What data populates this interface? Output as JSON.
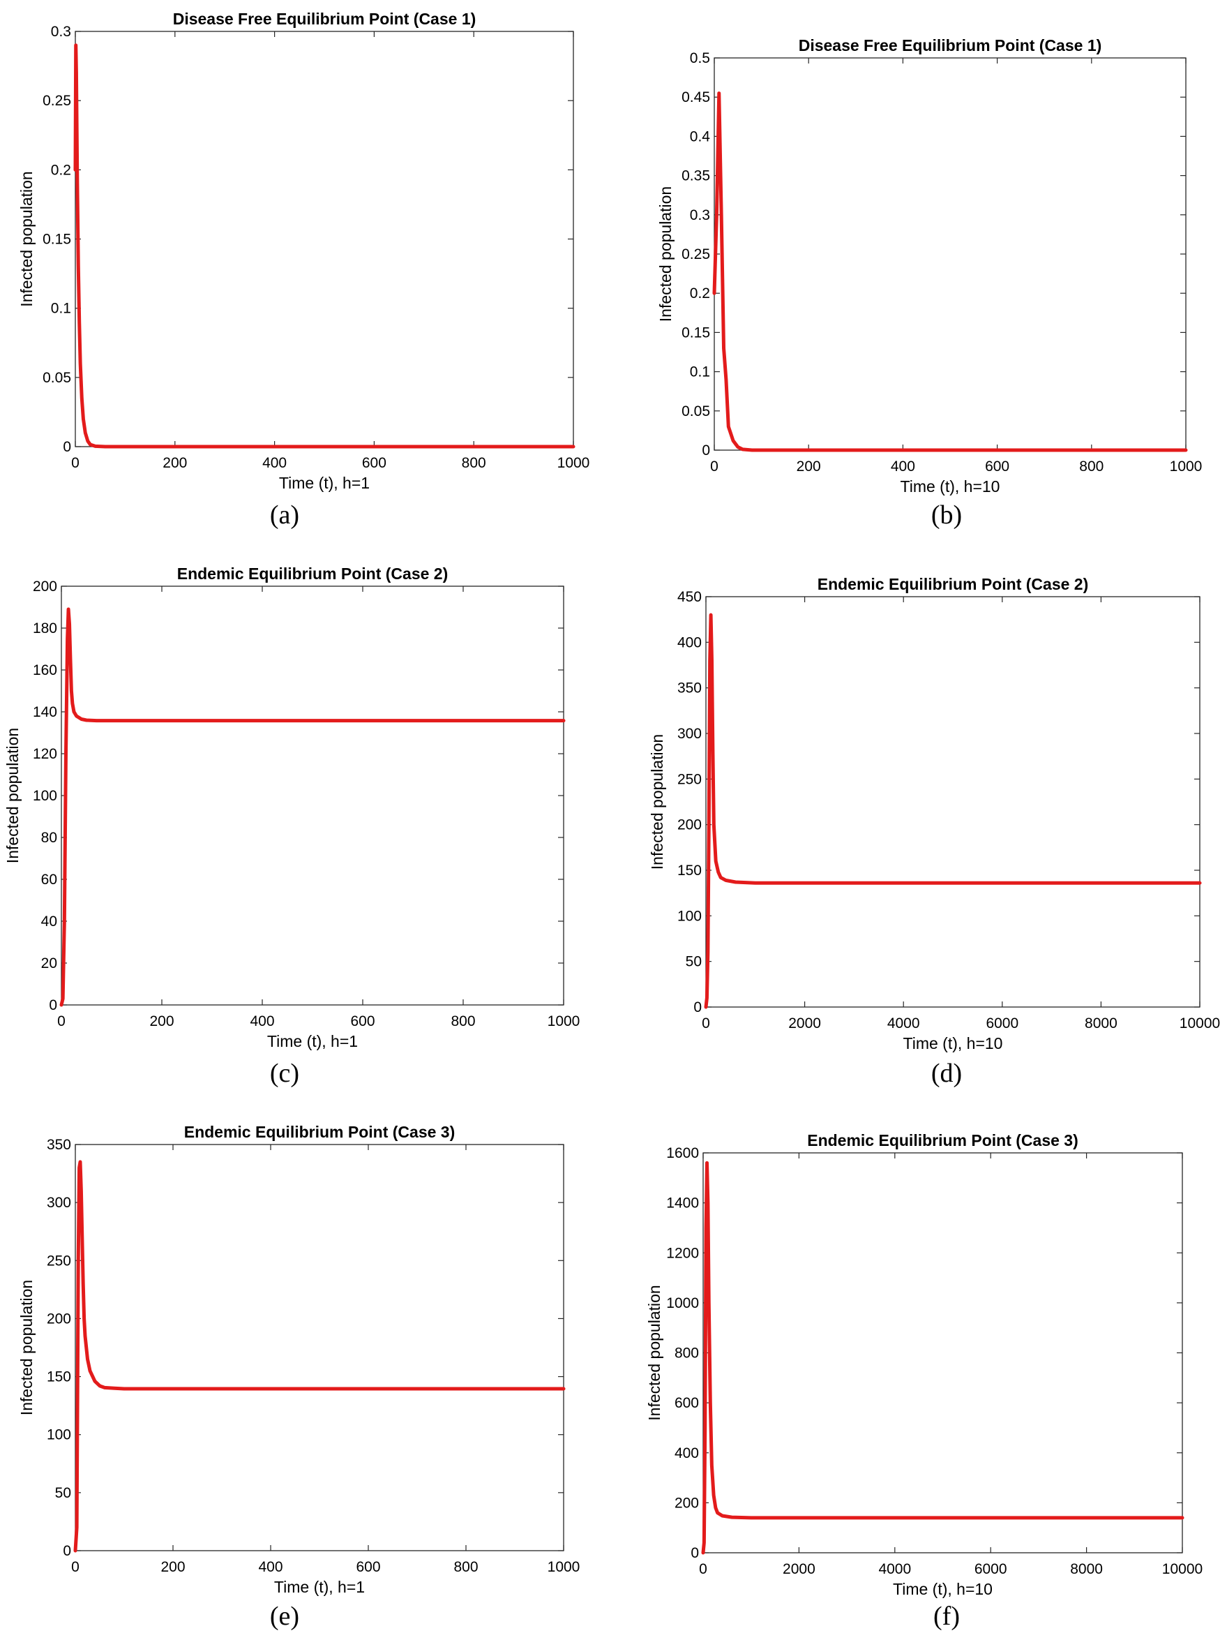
{
  "chart_data": [
    {
      "id": "a",
      "caption": "(a)",
      "type": "line",
      "title": "Disease Free Equilibrium Point (Case 1)",
      "xlabel": "Time (t), h=1",
      "ylabel": "Infected population",
      "xlim": [
        0,
        1000
      ],
      "ylim": [
        0,
        0.3
      ],
      "xticks": [
        0,
        200,
        400,
        600,
        800,
        1000
      ],
      "yticks": [
        0,
        0.05,
        0.1,
        0.15,
        0.2,
        0.25,
        0.3
      ],
      "grid": false,
      "line_color": "#e31b1b",
      "series": [
        {
          "x": [
            0,
            1,
            2,
            3,
            4,
            6,
            8,
            10,
            13,
            16,
            20,
            25,
            30,
            40,
            60,
            100,
            200,
            400,
            600,
            800,
            1000
          ],
          "y": [
            0.2,
            0.29,
            0.27,
            0.23,
            0.19,
            0.13,
            0.09,
            0.06,
            0.035,
            0.02,
            0.01,
            0.004,
            0.0015,
            0.0003,
            0,
            0,
            0,
            0,
            0,
            0,
            0
          ]
        }
      ]
    },
    {
      "id": "b",
      "caption": "(b)",
      "type": "line",
      "title": "Disease Free Equilibrium Point (Case 1)",
      "xlabel": "Time (t), h=10",
      "ylabel": "Infected population",
      "xlim": [
        0,
        1000
      ],
      "ylim": [
        0,
        0.5
      ],
      "xticks": [
        0,
        200,
        400,
        600,
        800,
        1000
      ],
      "yticks": [
        0,
        0.05,
        0.1,
        0.15,
        0.2,
        0.25,
        0.3,
        0.35,
        0.4,
        0.45,
        0.5
      ],
      "grid": false,
      "line_color": "#e31b1b",
      "series": [
        {
          "x": [
            0,
            5,
            10,
            15,
            20,
            25,
            30,
            40,
            50,
            60,
            80,
            100,
            200,
            400,
            600,
            800,
            1000
          ],
          "y": [
            0.2,
            0.3,
            0.455,
            0.3,
            0.13,
            0.09,
            0.03,
            0.012,
            0.004,
            0.001,
            0,
            0,
            0,
            0,
            0,
            0,
            0
          ]
        }
      ]
    },
    {
      "id": "c",
      "caption": "(c)",
      "type": "line",
      "title": "Endemic Equilibrium Point (Case 2)",
      "xlabel": "Time (t), h=1",
      "ylabel": "Infected population",
      "xlim": [
        0,
        1000
      ],
      "ylim": [
        0,
        200
      ],
      "xticks": [
        0,
        200,
        400,
        600,
        800,
        1000
      ],
      "yticks": [
        0,
        20,
        40,
        60,
        80,
        100,
        120,
        140,
        160,
        180,
        200
      ],
      "grid": false,
      "line_color": "#e31b1b",
      "series": [
        {
          "x": [
            0,
            3,
            6,
            9,
            12,
            14,
            16,
            18,
            20,
            22,
            25,
            30,
            40,
            50,
            70,
            100,
            200,
            400,
            600,
            800,
            1000
          ],
          "y": [
            0,
            3,
            40,
            120,
            175,
            189,
            182,
            165,
            150,
            144,
            140,
            138,
            136.5,
            136,
            135.8,
            135.8,
            135.8,
            135.8,
            135.8,
            135.8,
            135.8
          ]
        }
      ]
    },
    {
      "id": "d",
      "caption": "(d)",
      "type": "line",
      "title": "Endemic Equilibrium Point (Case 2)",
      "xlabel": "Time (t), h=10",
      "ylabel": "Infected population",
      "xlim": [
        0,
        10000
      ],
      "ylim": [
        0,
        450
      ],
      "xticks": [
        0,
        2000,
        4000,
        6000,
        8000,
        10000
      ],
      "yticks": [
        0,
        50,
        100,
        150,
        200,
        250,
        300,
        350,
        400,
        450
      ],
      "grid": false,
      "line_color": "#e31b1b",
      "series": [
        {
          "x": [
            0,
            20,
            40,
            60,
            80,
            100,
            120,
            140,
            160,
            200,
            250,
            300,
            400,
            600,
            1000,
            2000,
            4000,
            6000,
            8000,
            10000
          ],
          "y": [
            0,
            10,
            60,
            200,
            380,
            430,
            380,
            280,
            200,
            160,
            148,
            142,
            139,
            137,
            136,
            136,
            136,
            136,
            136,
            136
          ]
        }
      ]
    },
    {
      "id": "e",
      "caption": "(e)",
      "type": "line",
      "title": "Endemic Equilibrium Point (Case 3)",
      "xlabel": "Time (t), h=1",
      "ylabel": "Infected population",
      "xlim": [
        0,
        1000
      ],
      "ylim": [
        0,
        350
      ],
      "xticks": [
        0,
        200,
        400,
        600,
        800,
        1000
      ],
      "yticks": [
        0,
        50,
        100,
        150,
        200,
        250,
        300,
        350
      ],
      "grid": false,
      "line_color": "#e31b1b",
      "series": [
        {
          "x": [
            0,
            3,
            6,
            8,
            10,
            12,
            14,
            16,
            18,
            20,
            25,
            30,
            40,
            50,
            60,
            80,
            100,
            200,
            400,
            600,
            800,
            1000
          ],
          "y": [
            0,
            20,
            250,
            330,
            335,
            310,
            270,
            230,
            200,
            185,
            165,
            155,
            146,
            142,
            140.5,
            140,
            139.5,
            139.5,
            139.5,
            139.5,
            139.5,
            139.5
          ]
        }
      ]
    },
    {
      "id": "f",
      "caption": "(f)",
      "type": "line",
      "title": "Endemic Equilibrium Point (Case 3)",
      "xlabel": "Time (t), h=10",
      "ylabel": "Infected population",
      "xlim": [
        0,
        10000
      ],
      "ylim": [
        0,
        1600
      ],
      "xticks": [
        0,
        2000,
        4000,
        6000,
        8000,
        10000
      ],
      "yticks": [
        0,
        200,
        400,
        600,
        800,
        1000,
        1200,
        1400,
        1600
      ],
      "grid": false,
      "line_color": "#e31b1b",
      "series": [
        {
          "x": [
            0,
            20,
            40,
            60,
            80,
            100,
            120,
            150,
            180,
            220,
            260,
            300,
            400,
            600,
            1000,
            2000,
            4000,
            6000,
            8000,
            10000
          ],
          "y": [
            0,
            40,
            500,
            1300,
            1560,
            1400,
            1000,
            600,
            350,
            230,
            180,
            160,
            148,
            142,
            140,
            140,
            140,
            140,
            140,
            140
          ]
        }
      ]
    }
  ]
}
